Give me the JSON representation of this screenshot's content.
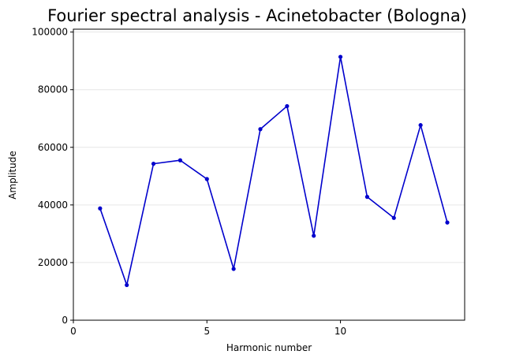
{
  "chart_data": {
    "type": "line",
    "title": "Fourier spectral analysis - Acinetobacter (Bologna)",
    "xlabel": "Harmonic number",
    "ylabel": "Amplitude",
    "xlim": [
      0,
      14.65
    ],
    "ylim": [
      0,
      101000
    ],
    "xticks": [
      0,
      5,
      10
    ],
    "xtick_labels": [
      "0",
      "5",
      "10"
    ],
    "yticks": [
      0,
      20000,
      40000,
      60000,
      80000,
      100000
    ],
    "ytick_labels": [
      "0",
      "20000",
      "40000",
      "60000",
      "80000",
      "100000"
    ],
    "grid": "horizontal",
    "color": "#0000cc",
    "series": [
      {
        "x": [
          1,
          2,
          3,
          4,
          5,
          6,
          7,
          8,
          9,
          10,
          11,
          12,
          13,
          14
        ],
        "values": [
          38800,
          12200,
          54300,
          55500,
          49000,
          17800,
          66300,
          74300,
          29300,
          91400,
          42800,
          35500,
          67700,
          33900
        ]
      }
    ]
  }
}
